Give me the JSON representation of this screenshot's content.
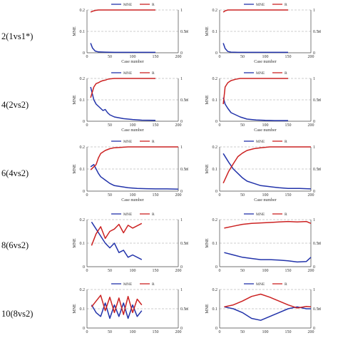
{
  "colors": {
    "mne": "#2233aa",
    "r": "#cc2222",
    "axis": "#444444",
    "dash": "#999999"
  },
  "rows": [
    {
      "label": "2(1vs1*)"
    },
    {
      "label": "4(2vs2)"
    },
    {
      "label": "6(4vs2)"
    },
    {
      "label": "8(6vs2)"
    },
    {
      "label": "10(8vs2)"
    }
  ],
  "chart_data": [
    {
      "type": "line",
      "id": "r1-left",
      "xlabel": "Case number",
      "ylabel_left": "MNE",
      "ylabel_right": "R",
      "xlim": [
        0,
        200
      ],
      "xticks": [
        "0",
        "50",
        "100",
        "150",
        "200"
      ],
      "ylim_left": [
        0,
        0.2
      ],
      "yticks_left": [
        "0",
        "0.1",
        "0.2"
      ],
      "ylim_right": [
        0,
        1
      ],
      "yticks_right": [
        "0",
        "0.5",
        "1"
      ],
      "legend": [
        "MNE",
        "R"
      ],
      "series": [
        {
          "name": "MNE",
          "axis": "left",
          "x": [
            8,
            12,
            18,
            25,
            40,
            60,
            80,
            100,
            120,
            150
          ],
          "y": [
            0.045,
            0.022,
            0.008,
            0.004,
            0.003,
            0.002,
            0.002,
            0.002,
            0.002,
            0.002
          ]
        },
        {
          "name": "R",
          "axis": "right",
          "x": [
            8,
            12,
            18,
            25,
            40,
            60,
            80,
            100,
            120,
            150
          ],
          "y": [
            0.95,
            0.97,
            0.99,
            1,
            1,
            1,
            1,
            1,
            1,
            1
          ]
        }
      ]
    },
    {
      "type": "line",
      "id": "r1-right",
      "xlabel": "Case number",
      "ylabel_left": "MNE",
      "ylabel_right": "R",
      "xlim": [
        0,
        200
      ],
      "xticks": [
        "0",
        "50",
        "100",
        "150",
        "200"
      ],
      "ylim_left": [
        0,
        0.2
      ],
      "yticks_left": [
        "0",
        "0.1",
        "0.2"
      ],
      "ylim_right": [
        0,
        1
      ],
      "yticks_right": [
        "0",
        "0.5",
        "1"
      ],
      "legend": [
        "MNE",
        "R"
      ],
      "series": [
        {
          "name": "MNE",
          "axis": "left",
          "x": [
            8,
            12,
            18,
            25,
            40,
            60,
            80,
            100,
            120,
            150
          ],
          "y": [
            0.045,
            0.02,
            0.006,
            0.003,
            0.002,
            0.002,
            0.002,
            0.002,
            0.002,
            0.002
          ]
        },
        {
          "name": "R",
          "axis": "right",
          "x": [
            8,
            12,
            18,
            25,
            40,
            60,
            80,
            100,
            120,
            150
          ],
          "y": [
            0.95,
            0.98,
            1,
            1,
            1,
            1,
            1,
            1,
            1,
            1
          ]
        }
      ]
    },
    {
      "type": "line",
      "id": "r2-left",
      "xlabel": "Case number",
      "ylabel_left": "MNE",
      "ylabel_right": "R",
      "xlim": [
        0,
        200
      ],
      "xticks": [
        "0",
        "50",
        "100",
        "150",
        "200"
      ],
      "ylim_left": [
        0,
        0.2
      ],
      "yticks_left": [
        "0",
        "0.1",
        "0.2"
      ],
      "ylim_right": [
        0,
        1
      ],
      "yticks_right": [
        "0",
        "0.5",
        "1"
      ],
      "legend": [
        "MNE",
        "R"
      ],
      "series": [
        {
          "name": "MNE",
          "axis": "left",
          "x": [
            8,
            15,
            20,
            25,
            30,
            35,
            40,
            45,
            50,
            60,
            80,
            100,
            120,
            150
          ],
          "y": [
            0.16,
            0.1,
            0.08,
            0.07,
            0.06,
            0.05,
            0.055,
            0.04,
            0.03,
            0.02,
            0.012,
            0.008,
            0.005,
            0.004
          ]
        },
        {
          "name": "R",
          "axis": "right",
          "x": [
            8,
            15,
            20,
            25,
            30,
            35,
            40,
            45,
            50,
            60,
            80,
            100,
            120,
            150
          ],
          "y": [
            0.55,
            0.8,
            0.88,
            0.9,
            0.93,
            0.95,
            0.96,
            0.98,
            0.99,
            1,
            1,
            1,
            1,
            1
          ]
        }
      ]
    },
    {
      "type": "line",
      "id": "r2-right",
      "xlabel": "Case number",
      "ylabel_left": "MNE",
      "ylabel_right": "R",
      "xlim": [
        0,
        200
      ],
      "xticks": [
        "0",
        "50",
        "100",
        "150",
        "200"
      ],
      "ylim_left": [
        0,
        0.2
      ],
      "yticks_left": [
        "0",
        "0.1",
        "0.2"
      ],
      "ylim_right": [
        0,
        1
      ],
      "yticks_right": [
        "0",
        "0.5",
        "1"
      ],
      "legend": [
        "MNE",
        "R"
      ],
      "series": [
        {
          "name": "MNE",
          "axis": "left",
          "x": [
            8,
            12,
            18,
            25,
            35,
            45,
            60,
            80,
            100,
            120,
            150
          ],
          "y": [
            0.11,
            0.08,
            0.06,
            0.04,
            0.03,
            0.02,
            0.01,
            0.006,
            0.004,
            0.003,
            0.003
          ]
        },
        {
          "name": "R",
          "axis": "right",
          "x": [
            8,
            12,
            18,
            25,
            35,
            45,
            60,
            80,
            100,
            120,
            150
          ],
          "y": [
            0.4,
            0.8,
            0.9,
            0.95,
            0.98,
            1,
            1,
            1,
            1,
            1,
            1
          ]
        }
      ]
    },
    {
      "type": "line",
      "id": "r3-left",
      "xlabel": "Case number",
      "ylabel_left": "MNE",
      "ylabel_right": "R",
      "xlim": [
        0,
        200
      ],
      "xticks": [
        "0",
        "50",
        "100",
        "150",
        "200"
      ],
      "ylim_left": [
        0,
        0.2
      ],
      "yticks_left": [
        "0",
        "0.1",
        "0.2"
      ],
      "ylim_right": [
        0,
        1
      ],
      "yticks_right": [
        "0",
        "0.5",
        "1"
      ],
      "legend": [
        "MNE",
        "R"
      ],
      "series": [
        {
          "name": "MNE",
          "axis": "left",
          "x": [
            8,
            15,
            20,
            25,
            30,
            40,
            50,
            60,
            75,
            90,
            110,
            130,
            150,
            175,
            200
          ],
          "y": [
            0.11,
            0.12,
            0.1,
            0.08,
            0.065,
            0.05,
            0.035,
            0.025,
            0.02,
            0.015,
            0.012,
            0.011,
            0.01,
            0.01,
            0.009
          ]
        },
        {
          "name": "R",
          "axis": "right",
          "x": [
            8,
            15,
            20,
            25,
            30,
            40,
            50,
            60,
            75,
            90,
            110,
            130,
            150,
            175,
            200
          ],
          "y": [
            0.48,
            0.55,
            0.6,
            0.75,
            0.85,
            0.92,
            0.96,
            0.98,
            0.99,
            1,
            1,
            1,
            1,
            1,
            1
          ]
        }
      ]
    },
    {
      "type": "line",
      "id": "r3-right",
      "xlabel": "Case number",
      "ylabel_left": "MNE",
      "ylabel_right": "R",
      "xlim": [
        0,
        200
      ],
      "xticks": [
        "0",
        "50",
        "100",
        "150",
        "200"
      ],
      "ylim_left": [
        0,
        0.2
      ],
      "yticks_left": [
        "0",
        "0.1",
        "0.2"
      ],
      "ylim_right": [
        0,
        1
      ],
      "yticks_right": [
        "0",
        "0.5",
        "1"
      ],
      "legend": [
        "MNE",
        "R"
      ],
      "series": [
        {
          "name": "MNE",
          "axis": "left",
          "x": [
            8,
            20,
            30,
            40,
            50,
            60,
            75,
            90,
            110,
            130,
            150,
            175,
            200
          ],
          "y": [
            0.17,
            0.13,
            0.1,
            0.08,
            0.06,
            0.045,
            0.035,
            0.025,
            0.02,
            0.015,
            0.012,
            0.012,
            0.01
          ]
        },
        {
          "name": "R",
          "axis": "right",
          "x": [
            8,
            20,
            30,
            40,
            50,
            60,
            75,
            90,
            110,
            130,
            150,
            175,
            200
          ],
          "y": [
            0.18,
            0.45,
            0.62,
            0.78,
            0.86,
            0.92,
            0.96,
            0.98,
            1,
            1,
            1,
            1,
            1
          ]
        }
      ]
    },
    {
      "type": "line",
      "id": "r4-left",
      "xlabel": "",
      "ylabel_left": "MNE",
      "ylabel_right": "R",
      "xlim": [
        0,
        200
      ],
      "xticks": [
        "0",
        "50",
        "100",
        "150",
        "200"
      ],
      "ylim_left": [
        0,
        0.2
      ],
      "yticks_left": [
        "0",
        "0.1",
        "0.2"
      ],
      "ylim_right": [
        0,
        1
      ],
      "yticks_right": [
        "0",
        "0.5",
        "1"
      ],
      "legend": [
        "MNE",
        "R"
      ],
      "series": [
        {
          "name": "MNE",
          "axis": "left",
          "x": [
            10,
            20,
            30,
            40,
            50,
            60,
            70,
            80,
            90,
            100,
            120
          ],
          "y": [
            0.19,
            0.16,
            0.13,
            0.1,
            0.08,
            0.1,
            0.06,
            0.07,
            0.04,
            0.05,
            0.03
          ]
        },
        {
          "name": "R",
          "axis": "right",
          "x": [
            10,
            20,
            30,
            40,
            50,
            60,
            70,
            80,
            90,
            100,
            120
          ],
          "y": [
            0.45,
            0.7,
            0.85,
            0.6,
            0.75,
            0.8,
            0.9,
            0.72,
            0.88,
            0.82,
            0.92
          ]
        }
      ]
    },
    {
      "type": "line",
      "id": "r4-right",
      "xlabel": "",
      "ylabel_left": "MNE",
      "ylabel_right": "R",
      "xlim": [
        0,
        200
      ],
      "xticks": [
        "0",
        "50",
        "100",
        "150",
        "200"
      ],
      "ylim_left": [
        0,
        0.2
      ],
      "yticks_left": [
        "0",
        "0.1",
        "0.2"
      ],
      "ylim_right": [
        0,
        1
      ],
      "yticks_right": [
        "0",
        "0.5",
        "1"
      ],
      "legend": [
        "MNE",
        "R"
      ],
      "series": [
        {
          "name": "MNE",
          "axis": "left",
          "x": [
            10,
            30,
            50,
            70,
            90,
            110,
            130,
            150,
            170,
            190,
            200
          ],
          "y": [
            0.06,
            0.05,
            0.04,
            0.035,
            0.03,
            0.03,
            0.028,
            0.025,
            0.02,
            0.022,
            0.04
          ]
        },
        {
          "name": "R",
          "axis": "right",
          "x": [
            10,
            30,
            50,
            70,
            90,
            110,
            130,
            150,
            170,
            190,
            200
          ],
          "y": [
            0.82,
            0.86,
            0.9,
            0.92,
            0.93,
            0.94,
            0.95,
            0.96,
            0.95,
            0.96,
            0.92
          ]
        }
      ]
    },
    {
      "type": "line",
      "id": "r5-left",
      "xlabel": "",
      "ylabel_left": "MNE",
      "ylabel_right": "R",
      "xlim": [
        0,
        200
      ],
      "xticks": [
        "0",
        "50",
        "100",
        "150",
        "200"
      ],
      "ylim_left": [
        0,
        0.2
      ],
      "yticks_left": [
        "0",
        "0.1",
        "0.2"
      ],
      "ylim_right": [
        0,
        1
      ],
      "yticks_right": [
        "0",
        "0.5",
        "1"
      ],
      "legend": [
        "MNE",
        "R"
      ],
      "series": [
        {
          "name": "MNE",
          "axis": "left",
          "x": [
            10,
            20,
            30,
            40,
            50,
            60,
            70,
            80,
            90,
            100,
            110,
            120
          ],
          "y": [
            0.12,
            0.08,
            0.06,
            0.13,
            0.05,
            0.12,
            0.06,
            0.13,
            0.05,
            0.12,
            0.06,
            0.09
          ]
        },
        {
          "name": "R",
          "axis": "right",
          "x": [
            10,
            20,
            30,
            40,
            50,
            60,
            70,
            80,
            90,
            100,
            110,
            120
          ],
          "y": [
            0.55,
            0.7,
            0.85,
            0.45,
            0.8,
            0.4,
            0.78,
            0.35,
            0.82,
            0.4,
            0.75,
            0.6
          ]
        }
      ]
    },
    {
      "type": "line",
      "id": "r5-right",
      "xlabel": "",
      "ylabel_left": "MNE",
      "ylabel_right": "R",
      "xlim": [
        0,
        200
      ],
      "xticks": [
        "0",
        "50",
        "100",
        "150",
        "200"
      ],
      "ylim_left": [
        0,
        0.2
      ],
      "yticks_left": [
        "0",
        "0.1",
        "0.2"
      ],
      "ylim_right": [
        0,
        1
      ],
      "yticks_right": [
        "0",
        "0.5",
        "1"
      ],
      "legend": [
        "MNE",
        "R"
      ],
      "series": [
        {
          "name": "MNE",
          "axis": "left",
          "x": [
            10,
            30,
            50,
            70,
            90,
            110,
            130,
            150,
            170,
            190,
            200
          ],
          "y": [
            0.11,
            0.1,
            0.08,
            0.05,
            0.04,
            0.06,
            0.08,
            0.1,
            0.11,
            0.1,
            0.1
          ]
        },
        {
          "name": "R",
          "axis": "right",
          "x": [
            10,
            30,
            50,
            70,
            90,
            110,
            130,
            150,
            170,
            190,
            200
          ],
          "y": [
            0.55,
            0.6,
            0.7,
            0.82,
            0.88,
            0.8,
            0.7,
            0.6,
            0.52,
            0.56,
            0.55
          ]
        }
      ]
    }
  ]
}
